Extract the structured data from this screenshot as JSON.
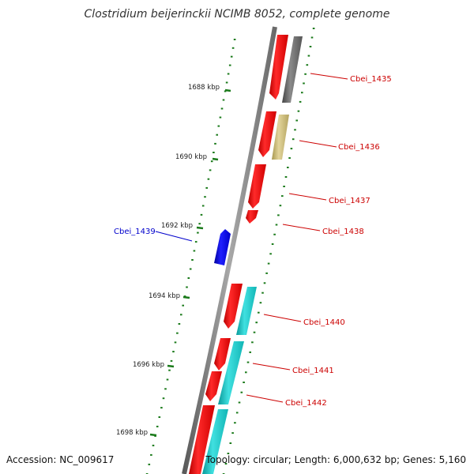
{
  "title": "Clostridium beijerinckii NCIMB 8052, complete genome",
  "accession_text": "Accession: NC_009617",
  "summary_text": "Topology: circular; Length: 6,000,632 bp; Genes: 5,160",
  "colors": {
    "backbone": "#888888",
    "tick": "#1a7a1a",
    "label_forward": "#cc0000",
    "label_reverse": "#0000cc",
    "cds_red": "#ff0000",
    "cds_blue": "#0000ff",
    "cog_cyan": "#1ccccc",
    "cog_gray": "#666666",
    "cog_khaki": "#c8b870"
  },
  "tick_labels": [
    "1688 kbp",
    "1690 kbp",
    "1692 kbp",
    "1694 kbp",
    "1696 kbp",
    "1698 kbp"
  ],
  "genes": [
    {
      "label": "Cbei_1435",
      "strand": "forward",
      "cog_color": "cog_gray"
    },
    {
      "label": "Cbei_1436",
      "strand": "forward",
      "cog_color": "cog_khaki"
    },
    {
      "label": "Cbei_1437",
      "strand": "forward",
      "cog_color": ""
    },
    {
      "label": "Cbei_1438",
      "strand": "forward",
      "cog_color": ""
    },
    {
      "label": "Cbei_1439",
      "strand": "reverse",
      "cog_color": ""
    },
    {
      "label": "Cbei_1440",
      "strand": "forward",
      "cog_color": "cog_cyan"
    },
    {
      "label": "Cbei_1441",
      "strand": "forward",
      "cog_color": "cog_cyan"
    },
    {
      "label": "Cbei_1442",
      "strand": "forward",
      "cog_color": "cog_cyan"
    }
  ]
}
